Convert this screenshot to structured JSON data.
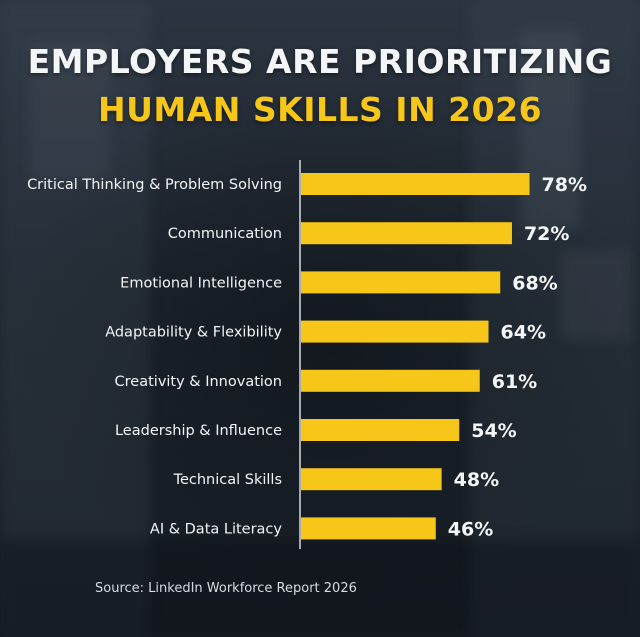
{
  "title_line1": "EMPLOYERS ARE PRIORITIZING",
  "title_line2": "HUMAN SKILLS IN 2026",
  "source": "Source: LinkedIn Workforce Report 2026",
  "colors": {
    "bar": "#f6c619",
    "highlight": "#f6c619",
    "text": "#f4f5f6",
    "axis": "#d7dbe0"
  },
  "chart_data": {
    "type": "bar",
    "orientation": "horizontal",
    "categories": [
      "Critical Thinking & Problem Solving",
      "Communication",
      "Emotional Intelligence",
      "Adaptability & Flexibility",
      "Creativity & Innovation",
      "Leadership & Influence",
      "Technical Skills",
      "AI & Data Literacy"
    ],
    "values": [
      78,
      72,
      68,
      64,
      61,
      54,
      48,
      46
    ],
    "value_labels": [
      "78%",
      "72%",
      "68%",
      "64%",
      "61%",
      "54%",
      "48%",
      "46%"
    ],
    "unit": "%",
    "xlim": [
      0,
      100
    ],
    "grid": false,
    "legend": "none"
  }
}
